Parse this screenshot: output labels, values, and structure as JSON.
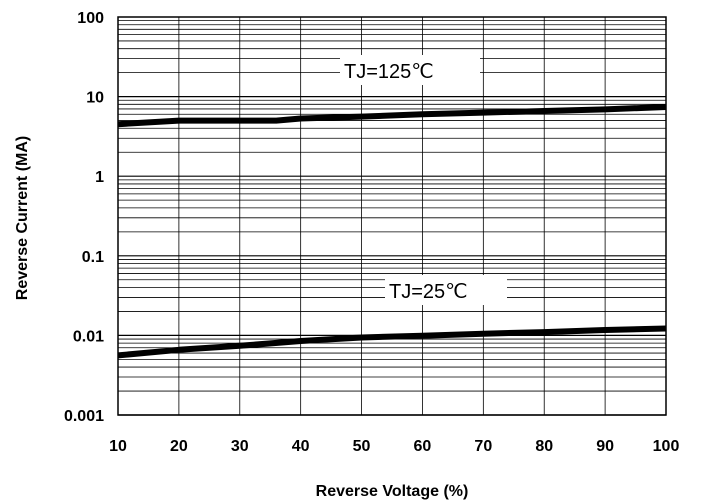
{
  "chart_data": {
    "type": "line",
    "xlabel": "Reverse Voltage (%)",
    "ylabel": "Reverse Current (MA)",
    "xlim": [
      10,
      100
    ],
    "ylim": [
      0.001,
      100
    ],
    "yscale": "log",
    "grid": true,
    "x_ticks": [
      "10",
      "20",
      "30",
      "40",
      "50",
      "60",
      "70",
      "80",
      "90",
      "100"
    ],
    "y_ticks": [
      "100",
      "10",
      "1",
      "0.1",
      "0.01",
      "0.001"
    ],
    "annotations": [
      "TJ=125℃",
      "TJ=25℃"
    ],
    "series": [
      {
        "name": "TJ=125℃",
        "x": [
          10,
          20,
          30,
          36,
          40,
          50,
          60,
          70,
          80,
          90,
          100
        ],
        "y": [
          4.5,
          5.0,
          5.0,
          5.0,
          5.3,
          5.6,
          6.0,
          6.3,
          6.6,
          6.9,
          7.4
        ]
      },
      {
        "name": "TJ=25℃",
        "x": [
          10,
          20,
          30,
          40,
          50,
          60,
          70,
          80,
          90,
          100
        ],
        "y": [
          0.0056,
          0.0066,
          0.0074,
          0.0085,
          0.0094,
          0.0099,
          0.0105,
          0.011,
          0.0117,
          0.0122
        ]
      }
    ]
  }
}
